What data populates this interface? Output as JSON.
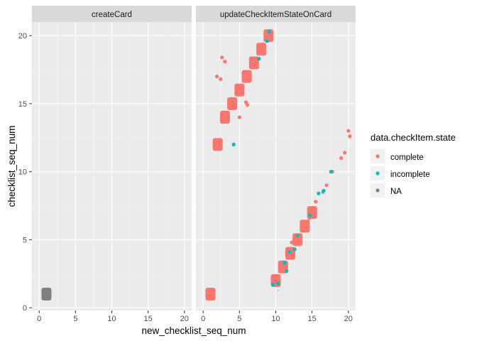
{
  "chart_data": {
    "type": "scatter",
    "xlabel": "new_checklist_seq_num",
    "ylabel": "checklist_seq_num",
    "xlim": [
      -1,
      21
    ],
    "ylim": [
      -0.2,
      21
    ],
    "x_ticks": [
      0,
      5,
      10,
      15,
      20
    ],
    "y_ticks": [
      0,
      5,
      10,
      15,
      20
    ],
    "grid": true,
    "facets": [
      "createCard",
      "updateCheckItemStateOnCard"
    ],
    "legend": {
      "title": "data.checkItem.state",
      "position": "right",
      "entries": [
        {
          "label": "complete",
          "color": "#F8766D"
        },
        {
          "label": "incomplete",
          "color": "#00BFC4"
        },
        {
          "label": "NA",
          "color": "#7F7F7F"
        }
      ]
    },
    "series": [
      {
        "name": "complete",
        "color": "#F8766D",
        "points": [
          {
            "facet": 1,
            "x": 1,
            "y": 1
          },
          {
            "facet": 1,
            "x": 2,
            "y": 12
          },
          {
            "facet": 1,
            "x": 3,
            "y": 14
          },
          {
            "facet": 1,
            "x": 4,
            "y": 15
          },
          {
            "facet": 1,
            "x": 5,
            "y": 16
          },
          {
            "facet": 1,
            "x": 6,
            "y": 17
          },
          {
            "facet": 1,
            "x": 7,
            "y": 18
          },
          {
            "facet": 1,
            "x": 8,
            "y": 19
          },
          {
            "facet": 1,
            "x": 9,
            "y": 20
          },
          {
            "facet": 1,
            "x": 1.9,
            "y": 17.0
          },
          {
            "facet": 1,
            "x": 2.4,
            "y": 16.8
          },
          {
            "facet": 1,
            "x": 2.6,
            "y": 18.4
          },
          {
            "facet": 1,
            "x": 3.0,
            "y": 18.1
          },
          {
            "facet": 1,
            "x": 5.0,
            "y": 14.0
          },
          {
            "facet": 1,
            "x": 5.9,
            "y": 15.1
          },
          {
            "facet": 1,
            "x": 6.1,
            "y": 14.9
          },
          {
            "facet": 1,
            "x": 10.0,
            "y": 2.0
          },
          {
            "facet": 1,
            "x": 11.0,
            "y": 3.0
          },
          {
            "facet": 1,
            "x": 12.0,
            "y": 4.0
          },
          {
            "facet": 1,
            "x": 13.0,
            "y": 5.0
          },
          {
            "facet": 1,
            "x": 14.0,
            "y": 6.0
          },
          {
            "facet": 1,
            "x": 15.0,
            "y": 7.0
          },
          {
            "facet": 1,
            "x": 15.5,
            "y": 7.8
          },
          {
            "facet": 1,
            "x": 16.5,
            "y": 8.5
          },
          {
            "facet": 1,
            "x": 17.0,
            "y": 9.0
          },
          {
            "facet": 1,
            "x": 17.8,
            "y": 10.0
          },
          {
            "facet": 1,
            "x": 19.0,
            "y": 11.0
          },
          {
            "facet": 1,
            "x": 19.5,
            "y": 11.4
          },
          {
            "facet": 1,
            "x": 20.0,
            "y": 13.0
          },
          {
            "facet": 1,
            "x": 20.2,
            "y": 12.6
          },
          {
            "facet": 1,
            "x": 12.2,
            "y": 4.8
          },
          {
            "facet": 1,
            "x": 14.6,
            "y": 6.6
          }
        ]
      },
      {
        "name": "incomplete",
        "color": "#00BFC4",
        "points": [
          {
            "facet": 1,
            "x": 4.2,
            "y": 12.0
          },
          {
            "facet": 1,
            "x": 9.6,
            "y": 1.7
          },
          {
            "facet": 1,
            "x": 10.3,
            "y": 1.8
          },
          {
            "facet": 1,
            "x": 11.5,
            "y": 2.7
          },
          {
            "facet": 1,
            "x": 11.2,
            "y": 3.3
          },
          {
            "facet": 1,
            "x": 11.9,
            "y": 4.1
          },
          {
            "facet": 1,
            "x": 12.6,
            "y": 4.3
          },
          {
            "facet": 1,
            "x": 13.0,
            "y": 5.3
          },
          {
            "facet": 1,
            "x": 14.7,
            "y": 6.8
          },
          {
            "facet": 1,
            "x": 15.9,
            "y": 8.4
          },
          {
            "facet": 1,
            "x": 16.6,
            "y": 8.6
          },
          {
            "facet": 1,
            "x": 17.6,
            "y": 10.0
          },
          {
            "facet": 1,
            "x": 8.8,
            "y": 19.6
          },
          {
            "facet": 1,
            "x": 9.1,
            "y": 20.3
          },
          {
            "facet": 1,
            "x": 7.7,
            "y": 18.3
          }
        ]
      },
      {
        "name": "NA",
        "color": "#7F7F7F",
        "points": [
          {
            "facet": 0,
            "x": 1,
            "y": 1
          }
        ]
      }
    ],
    "clusters": [
      {
        "series": "complete",
        "facet": 1,
        "x": 1,
        "y": 1
      },
      {
        "series": "complete",
        "facet": 1,
        "x": 2,
        "y": 12
      },
      {
        "series": "complete",
        "facet": 1,
        "x": 3,
        "y": 14
      },
      {
        "series": "complete",
        "facet": 1,
        "x": 4,
        "y": 15
      },
      {
        "series": "complete",
        "facet": 1,
        "x": 5,
        "y": 16
      },
      {
        "series": "complete",
        "facet": 1,
        "x": 6,
        "y": 17
      },
      {
        "series": "complete",
        "facet": 1,
        "x": 7,
        "y": 18
      },
      {
        "series": "complete",
        "facet": 1,
        "x": 8,
        "y": 19
      },
      {
        "series": "complete",
        "facet": 1,
        "x": 9,
        "y": 20
      },
      {
        "series": "complete",
        "facet": 1,
        "x": 10,
        "y": 2
      },
      {
        "series": "complete",
        "facet": 1,
        "x": 11,
        "y": 3
      },
      {
        "series": "complete",
        "facet": 1,
        "x": 12,
        "y": 4
      },
      {
        "series": "complete",
        "facet": 1,
        "x": 13,
        "y": 5
      },
      {
        "series": "complete",
        "facet": 1,
        "x": 14,
        "y": 6
      },
      {
        "series": "complete",
        "facet": 1,
        "x": 15,
        "y": 7
      },
      {
        "series": "NA",
        "facet": 0,
        "x": 1,
        "y": 1
      }
    ]
  }
}
